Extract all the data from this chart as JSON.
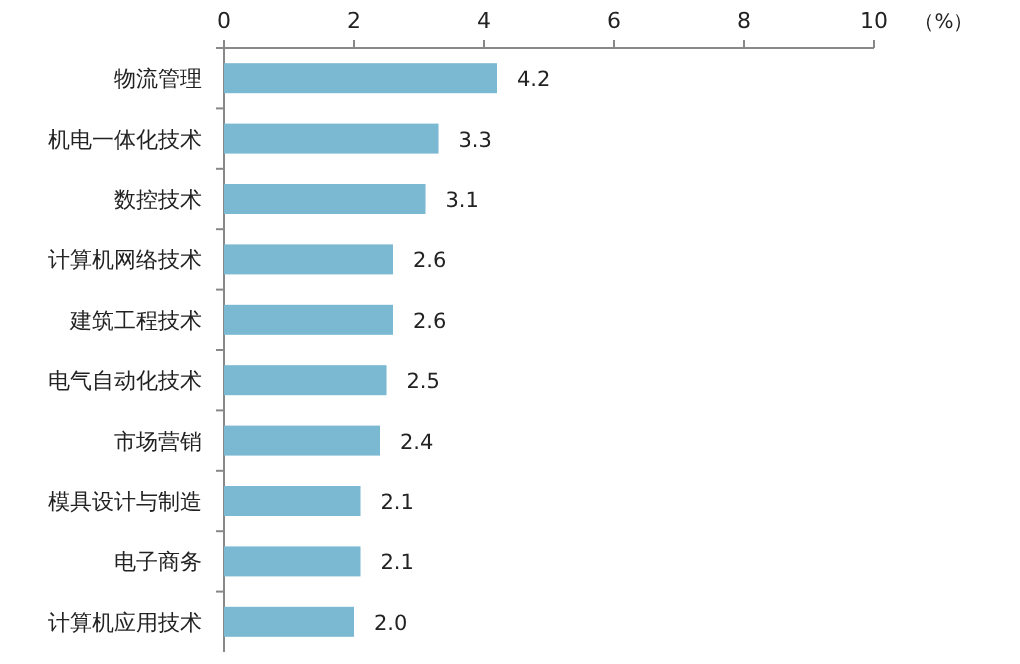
{
  "chart_data": {
    "type": "bar",
    "orientation": "horizontal",
    "xlabel": "（%）",
    "categories": [
      "物流管理",
      "机电一体化技术",
      "数控技术",
      "计算机网络技术",
      "建筑工程技术",
      "电气自动化技术",
      "市场营销",
      "模具设计与制造",
      "电子商务",
      "计算机应用技术"
    ],
    "values": [
      4.2,
      3.3,
      3.1,
      2.6,
      2.6,
      2.5,
      2.4,
      2.1,
      2.1,
      2.0
    ],
    "value_labels": [
      "4.2",
      "3.3",
      "3.1",
      "2.6",
      "2.6",
      "2.5",
      "2.4",
      "2.1",
      "2.1",
      "2.0"
    ],
    "color": "#7bb8d1",
    "xlim": [
      0,
      10
    ],
    "xticks": [
      0,
      2,
      4,
      6,
      8,
      10
    ]
  }
}
